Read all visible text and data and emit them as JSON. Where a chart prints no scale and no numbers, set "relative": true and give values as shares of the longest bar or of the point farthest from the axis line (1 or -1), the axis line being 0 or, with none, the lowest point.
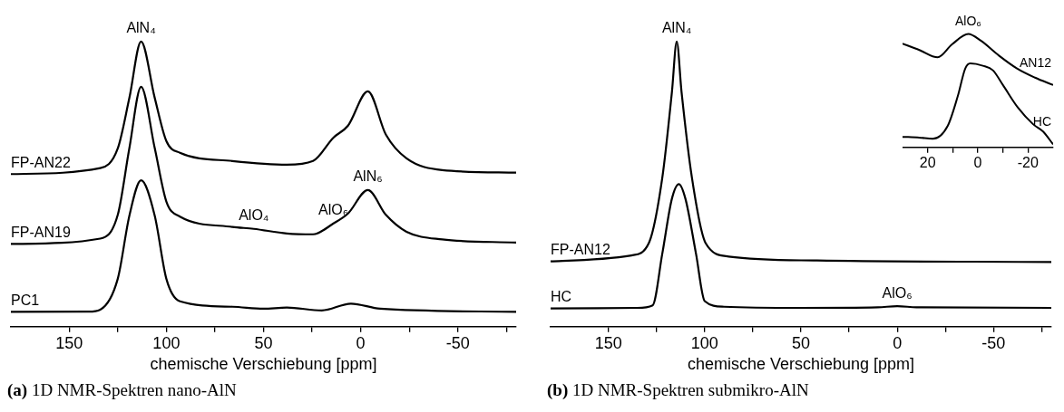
{
  "chart_data": [
    {
      "type": "line",
      "relative": true,
      "xlabel": "chemische Verschiebung [ppm]",
      "xlim": [
        180,
        -80
      ],
      "xticks": [
        150,
        {
          "value": 125,
          "label": null
        },
        100,
        {
          "value": 75,
          "label": null
        },
        50,
        {
          "value": 25,
          "label": null
        },
        0,
        {
          "value": -25,
          "label": null
        },
        -50,
        {
          "value": -75,
          "label": null
        }
      ],
      "grid": false,
      "legend": false,
      "marker": "none",
      "line_style": "solid",
      "series": [
        {
          "name": "FP-AN22",
          "color": "#000000",
          "x": [
            180,
            134,
            125,
            119,
            113,
            106,
            100,
            93,
            66,
            38,
            24.5,
            14,
            6.5,
            -3.7,
            -13,
            -23.6,
            -42,
            -80
          ],
          "values": [
            0.535,
            0.556,
            0.625,
            0.803,
            1.0,
            0.803,
            0.651,
            0.61,
            0.581,
            0.568,
            0.581,
            0.663,
            0.705,
            0.825,
            0.673,
            0.59,
            0.549,
            0.54
          ]
        },
        {
          "name": "FP-AN19",
          "color": "#000000",
          "x": [
            180,
            134,
            125,
            119,
            113,
            106,
            100,
            93,
            66,
            55,
            38,
            24.5,
            14,
            6.5,
            -3.7,
            -13,
            -23.6,
            -42,
            -80
          ],
          "values": [
            0.29,
            0.309,
            0.392,
            0.627,
            0.841,
            0.627,
            0.439,
            0.386,
            0.35,
            0.343,
            0.327,
            0.324,
            0.362,
            0.397,
            0.479,
            0.392,
            0.333,
            0.306,
            0.295
          ]
        },
        {
          "name": "PC1",
          "color": "#000000",
          "x": [
            180,
            140,
            134,
            125,
            119,
            113,
            106,
            100,
            93,
            66,
            50,
            38,
            20,
            5,
            -10,
            -80
          ],
          "values": [
            0.052,
            0.053,
            0.06,
            0.168,
            0.39,
            0.513,
            0.39,
            0.168,
            0.089,
            0.07,
            0.063,
            0.067,
            0.057,
            0.081,
            0.063,
            0.052
          ]
        }
      ],
      "annotations": [
        {
          "text": "AlN₄",
          "x": 113,
          "y": 1.0
        },
        {
          "text": "AlO₄",
          "x": 55,
          "y": 0.343
        },
        {
          "text": "AlO₆",
          "x": 14,
          "y": 0.362
        },
        {
          "text": "AlN₆",
          "x": -3.7,
          "y": 0.479
        },
        "(a) 1D NMR-Spektren nano-AlN"
      ]
    },
    {
      "type": "line",
      "relative": true,
      "xlabel": "chemische Verschiebung [ppm]",
      "xlim": [
        180,
        -80
      ],
      "xticks": [
        150,
        {
          "value": 125,
          "label": null
        },
        100,
        {
          "value": 75,
          "label": null
        },
        50,
        {
          "value": 25,
          "label": null
        },
        0,
        {
          "value": -25,
          "label": null
        },
        -50,
        {
          "value": -75,
          "label": null
        }
      ],
      "grid": false,
      "legend": false,
      "marker": "none",
      "line_style": "solid",
      "series": [
        {
          "name": "FP-AN12",
          "color": "#000000",
          "x": [
            180,
            138,
            129,
            122,
            117,
            114.5,
            112,
            106.6,
            99.5,
            87.5,
            41.7,
            -80
          ],
          "values": [
            0.229,
            0.25,
            0.293,
            0.522,
            0.823,
            1.0,
            0.823,
            0.522,
            0.293,
            0.246,
            0.232,
            0.227
          ]
        },
        {
          "name": "HC",
          "color": "#000000",
          "x": [
            180,
            135,
            127,
            122,
            117,
            113.4,
            110,
            104.5,
            100,
            90,
            50,
            10,
            0,
            -10,
            -80
          ],
          "values": [
            0.064,
            0.066,
            0.075,
            0.256,
            0.449,
            0.5,
            0.449,
            0.256,
            0.09,
            0.07,
            0.066,
            0.068,
            0.072,
            0.068,
            0.066
          ]
        }
      ],
      "annotations": [
        {
          "text": "AlN₄",
          "x": 114.5,
          "y": 1.0
        },
        {
          "text": "AlO₆",
          "x": 0,
          "y": 0.072
        },
        "(b) 1D NMR-Spektren submikro-AlN"
      ]
    },
    {
      "type": "line",
      "relative": true,
      "xlim": [
        30,
        -30
      ],
      "xticks": [
        20,
        {
          "value": 10,
          "label": null
        },
        0,
        {
          "value": -10,
          "label": null
        },
        -20
      ],
      "grid": false,
      "legend": false,
      "marker": "none",
      "line_style": "solid",
      "series": [
        {
          "name": "AN12",
          "color": "#000000",
          "x": [
            30,
            23.3,
            16,
            10.3,
            3.8,
            -1.2,
            -8.4,
            -15.6,
            -22.8,
            -30
          ],
          "values": [
            0.915,
            0.859,
            0.794,
            0.908,
            1.0,
            0.941,
            0.81,
            0.696,
            0.615,
            0.55
          ]
        },
        {
          "name": "HC",
          "color": "#000000",
          "x": [
            30,
            23.3,
            18,
            12,
            8,
            5,
            3,
            -2,
            -6,
            -10,
            -16,
            -22,
            -26,
            -30
          ],
          "values": [
            0.093,
            0.087,
            0.076,
            0.19,
            0.451,
            0.696,
            0.74,
            0.72,
            0.68,
            0.55,
            0.35,
            0.205,
            0.14,
            0.027
          ]
        }
      ],
      "annotations": [
        {
          "text": "AlO₆",
          "x": 3.8,
          "y": 1.0
        }
      ]
    }
  ]
}
